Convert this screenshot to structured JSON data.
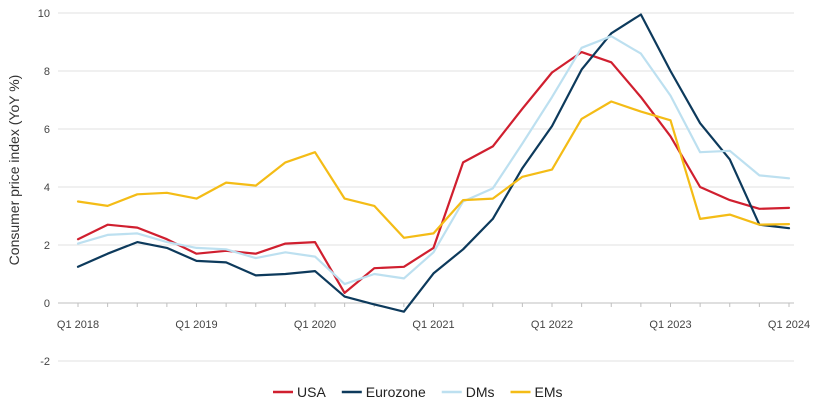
{
  "chart_data": {
    "type": "line",
    "title": "",
    "xlabel": "",
    "ylabel": "Consumer price index (YoY %)",
    "ylim": [
      -2,
      10
    ],
    "yticks": [
      -2,
      0,
      2,
      4,
      6,
      8,
      10
    ],
    "grid": "horizontal",
    "legend_position": "bottom",
    "x": [
      "Q1 2018",
      "Q2 2018",
      "Q3 2018",
      "Q4 2018",
      "Q1 2019",
      "Q2 2019",
      "Q3 2019",
      "Q4 2019",
      "Q1 2020",
      "Q2 2020",
      "Q3 2020",
      "Q4 2020",
      "Q1 2021",
      "Q2 2021",
      "Q3 2021",
      "Q4 2021",
      "Q1 2022",
      "Q2 2022",
      "Q3 2022",
      "Q4 2022",
      "Q1 2023",
      "Q2 2023",
      "Q3 2023",
      "Q4 2023",
      "Q1 2024"
    ],
    "xtick_labels": [
      {
        "index": 0,
        "label": "Q1 2018"
      },
      {
        "index": 4,
        "label": "Q1 2019"
      },
      {
        "index": 8,
        "label": "Q1 2020"
      },
      {
        "index": 12,
        "label": "Q1 2021"
      },
      {
        "index": 16,
        "label": "Q1 2022"
      },
      {
        "index": 20,
        "label": "Q1 2023"
      },
      {
        "index": 24,
        "label": "Q1 2024"
      }
    ],
    "series": [
      {
        "name": "USA",
        "color": "#d01f2f",
        "values": [
          2.2,
          2.7,
          2.6,
          2.2,
          1.7,
          1.8,
          1.7,
          2.05,
          2.1,
          0.35,
          1.2,
          1.25,
          1.9,
          4.85,
          5.4,
          6.7,
          7.95,
          8.65,
          8.3,
          7.1,
          5.75,
          4.0,
          3.55,
          3.25,
          3.28
        ]
      },
      {
        "name": "Eurozone",
        "color": "#0d3a5c",
        "values": [
          1.25,
          1.7,
          2.1,
          1.9,
          1.45,
          1.4,
          0.95,
          1.0,
          1.1,
          0.22,
          -0.05,
          -0.3,
          1.02,
          1.85,
          2.9,
          4.65,
          6.1,
          8.05,
          9.3,
          9.95,
          8.0,
          6.2,
          4.95,
          2.7,
          2.58
        ]
      },
      {
        "name": "DMs",
        "color": "#bde0f0",
        "values": [
          2.05,
          2.35,
          2.4,
          2.1,
          1.9,
          1.85,
          1.55,
          1.75,
          1.6,
          0.65,
          1.0,
          0.85,
          1.75,
          3.5,
          3.95,
          5.5,
          7.1,
          8.8,
          9.2,
          8.6,
          7.15,
          5.2,
          5.25,
          4.4,
          4.3
        ]
      },
      {
        "name": "EMs",
        "color": "#f4bc16",
        "values": [
          3.5,
          3.35,
          3.75,
          3.8,
          3.6,
          4.15,
          4.05,
          4.85,
          5.2,
          3.6,
          3.35,
          2.25,
          2.4,
          3.55,
          3.6,
          4.35,
          4.6,
          6.35,
          6.95,
          6.6,
          6.3,
          2.9,
          3.05,
          2.7,
          2.72
        ]
      }
    ]
  }
}
